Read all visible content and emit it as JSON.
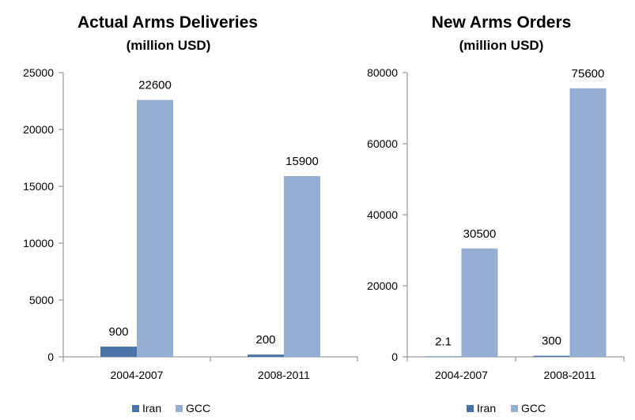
{
  "chart_data": [
    {
      "type": "bar",
      "title": "Actual Arms Deliveries",
      "subtitle": "(million USD)",
      "categories": [
        "2004-2007",
        "2008-2011"
      ],
      "series": [
        {
          "name": "Iran",
          "values": [
            900,
            200
          ],
          "labels": [
            "900",
            "200"
          ],
          "color": "#4a74a8"
        },
        {
          "name": "GCC",
          "values": [
            22600,
            15900
          ],
          "labels": [
            "22600",
            "15900"
          ],
          "color": "#95aed4"
        }
      ],
      "ylim": [
        0,
        25000
      ],
      "yticks": [
        "0",
        "5000",
        "10000",
        "15000",
        "20000",
        "25000"
      ],
      "xlabel": "",
      "ylabel": "",
      "grid": false,
      "legend": "bottom"
    },
    {
      "type": "bar",
      "title": "New Arms Orders",
      "subtitle": "(million USD)",
      "categories": [
        "2004-2007",
        "2008-2011"
      ],
      "series": [
        {
          "name": "Iran",
          "values": [
            2.1,
            300
          ],
          "labels": [
            "2.1",
            "300"
          ],
          "color": "#4a74a8"
        },
        {
          "name": "GCC",
          "values": [
            30500,
            75600
          ],
          "labels": [
            "30500",
            "75600"
          ],
          "color": "#95aed4"
        }
      ],
      "ylim": [
        0,
        80000
      ],
      "yticks": [
        "0",
        "20000",
        "40000",
        "60000",
        "80000"
      ],
      "xlabel": "",
      "ylabel": "",
      "grid": false,
      "legend": "bottom"
    }
  ]
}
